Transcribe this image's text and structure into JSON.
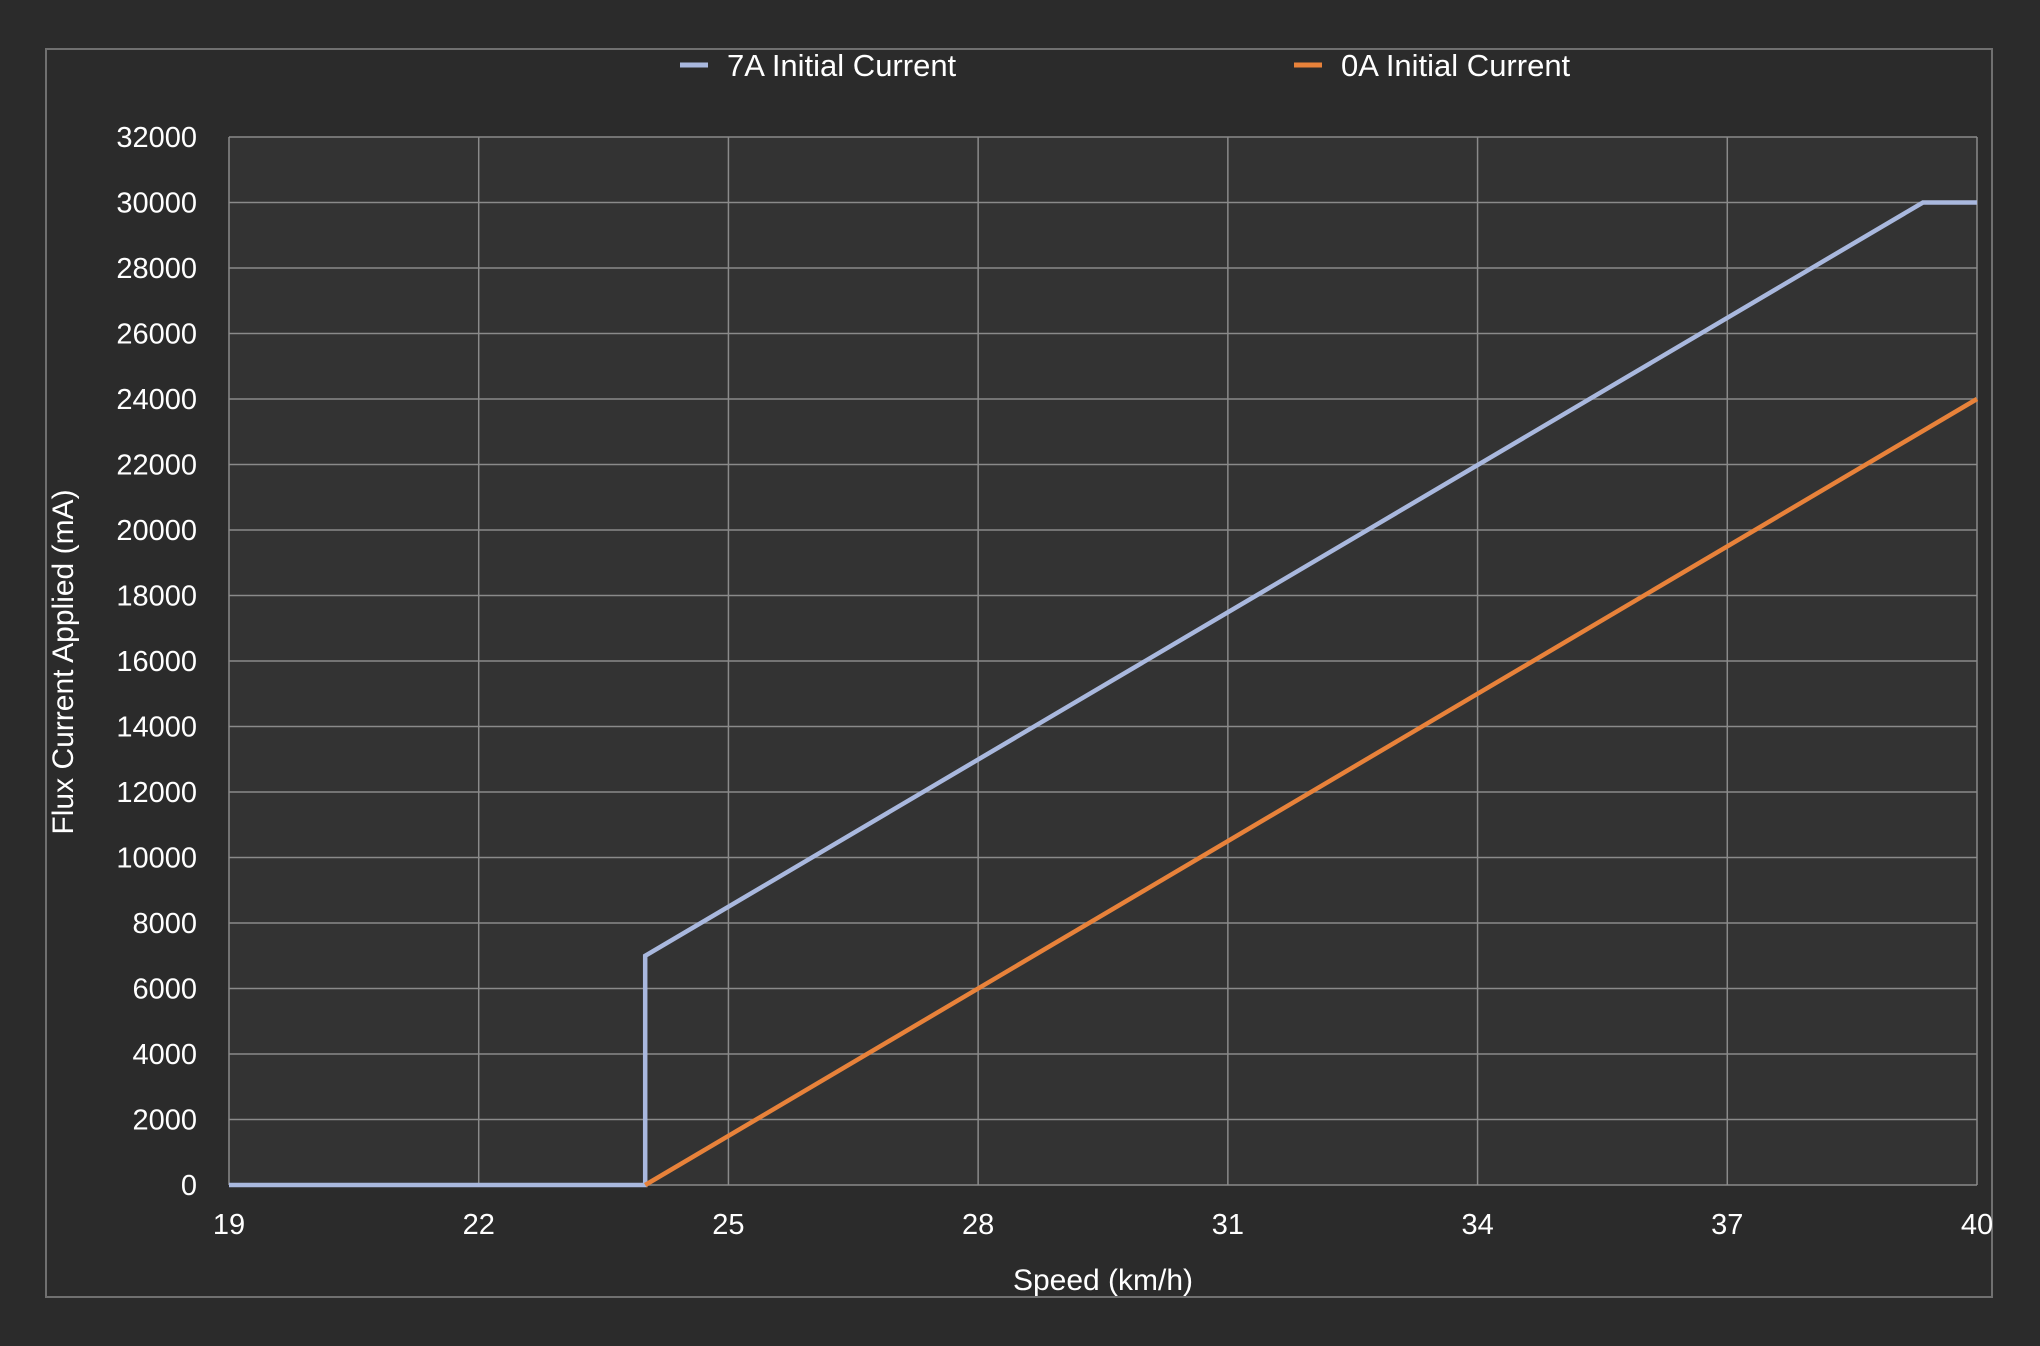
{
  "chart_data": {
    "type": "line",
    "title": "",
    "xlabel": "Speed (km/h)",
    "ylabel": "Flux Current Applied (mA)",
    "xlim": [
      19,
      40
    ],
    "ylim": [
      0,
      32000
    ],
    "x_ticks": [
      "19",
      "22",
      "25",
      "28",
      "31",
      "34",
      "37",
      "40"
    ],
    "x_tick_values": [
      19,
      22,
      25,
      28,
      31,
      34,
      37,
      40
    ],
    "y_ticks": [
      "0",
      "2000",
      "4000",
      "6000",
      "8000",
      "10000",
      "12000",
      "14000",
      "16000",
      "18000",
      "20000",
      "22000",
      "24000",
      "26000",
      "28000",
      "30000",
      "32000"
    ],
    "y_tick_values": [
      0,
      2000,
      4000,
      6000,
      8000,
      10000,
      12000,
      14000,
      16000,
      18000,
      20000,
      22000,
      24000,
      26000,
      28000,
      30000,
      32000
    ],
    "grid": true,
    "legend_position": "top",
    "series": [
      {
        "name": "7A Initial Current",
        "color": "#a9b8de",
        "x": [
          19,
          24,
          24,
          39.35,
          40
        ],
        "y": [
          0,
          0,
          7000,
          30000,
          30000
        ]
      },
      {
        "name": "0A Initial Current",
        "color": "#e8823a",
        "x": [
          24,
          40
        ],
        "y": [
          0,
          24000
        ]
      }
    ]
  }
}
